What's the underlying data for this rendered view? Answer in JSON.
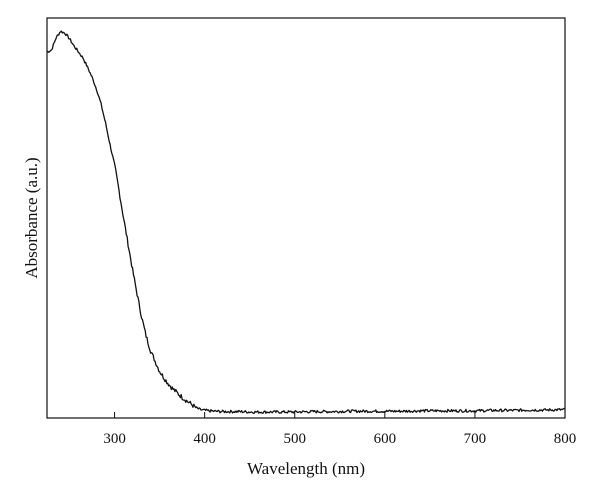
{
  "chart_data": {
    "type": "line",
    "xlabel": "Wavelength (nm)",
    "ylabel": "Absorbance (a.u.)",
    "xlim": [
      225,
      800
    ],
    "ylim": [
      0,
      1
    ],
    "x_ticks": [
      "300",
      "400",
      "500",
      "600",
      "700",
      "800"
    ],
    "y_ticks_shown": false,
    "grid": false,
    "series": [
      {
        "x": [
          225,
          230,
          235,
          240,
          245,
          250,
          255,
          260,
          265,
          270,
          275,
          280,
          285,
          290,
          295,
          300,
          305,
          310,
          315,
          320,
          325,
          330,
          335,
          340,
          345,
          350,
          355,
          360,
          365,
          370,
          375,
          380,
          385,
          390,
          395,
          400,
          410,
          420,
          430,
          440,
          450,
          460,
          480,
          500,
          520,
          540,
          560,
          580,
          600,
          620,
          640,
          660,
          680,
          700,
          720,
          740,
          760,
          780,
          800
        ],
        "y": [
          0.915,
          0.92,
          0.95,
          0.967,
          0.962,
          0.948,
          0.93,
          0.915,
          0.9,
          0.877,
          0.852,
          0.822,
          0.785,
          0.737,
          0.683,
          0.633,
          0.568,
          0.5,
          0.435,
          0.37,
          0.31,
          0.253,
          0.205,
          0.168,
          0.142,
          0.117,
          0.1,
          0.085,
          0.072,
          0.062,
          0.052,
          0.043,
          0.035,
          0.026,
          0.021,
          0.019,
          0.017,
          0.016,
          0.016,
          0.016,
          0.015,
          0.015,
          0.015,
          0.015,
          0.016,
          0.016,
          0.017,
          0.017,
          0.017,
          0.017,
          0.018,
          0.018,
          0.018,
          0.018,
          0.019,
          0.019,
          0.02,
          0.02,
          0.021
        ]
      }
    ]
  }
}
